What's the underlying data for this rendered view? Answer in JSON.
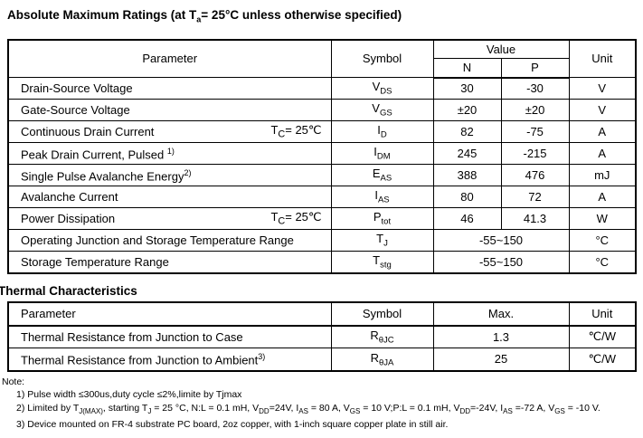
{
  "abs_max": {
    "title": [
      "Absolute Maximum Ratings (at T",
      [
        "sub",
        "a"
      ],
      "= 25°C unless otherwise specified)"
    ],
    "headers": {
      "parameter": "Parameter",
      "symbol": "Symbol",
      "value": "Value",
      "n": "N",
      "p": "P",
      "unit": "Unit"
    },
    "rows": [
      {
        "parameter": [
          "Drain-Source Voltage"
        ],
        "symbol": [
          "V",
          [
            "sub",
            "DS"
          ]
        ],
        "n": "30",
        "p": "-30",
        "unit": "V"
      },
      {
        "parameter": [
          "Gate-Source Voltage"
        ],
        "symbol": [
          "V",
          [
            "sub",
            "GS"
          ]
        ],
        "n": "±20",
        "p": "±20",
        "unit": "V"
      },
      {
        "parameter": [
          "Continuous Drain Current"
        ],
        "condition": [
          "T",
          [
            "sub",
            "C"
          ],
          "= 25℃"
        ],
        "symbol": [
          "I",
          [
            "sub",
            "D"
          ]
        ],
        "n": "82",
        "p": "-75",
        "unit": "A"
      },
      {
        "parameter": [
          "Peak Drain Current, Pulsed ",
          [
            "sup",
            "1)"
          ]
        ],
        "symbol": [
          "I",
          [
            "sub",
            "DM"
          ]
        ],
        "n": "245",
        "p": "-215",
        "unit": "A"
      },
      {
        "parameter": [
          "Single Pulse Avalanche Energy",
          [
            "sup",
            "2)"
          ]
        ],
        "symbol": [
          "E",
          [
            "sub",
            "AS"
          ]
        ],
        "n": "388",
        "p": "476",
        "unit": "mJ"
      },
      {
        "parameter": [
          "Avalanche Current"
        ],
        "symbol": [
          "I",
          [
            "sub",
            "AS"
          ]
        ],
        "n": "80",
        "p": "72",
        "unit": "A"
      },
      {
        "parameter": [
          "Power Dissipation"
        ],
        "condition": [
          "T",
          [
            "sub",
            "C"
          ],
          "= 25℃"
        ],
        "symbol": [
          "P",
          [
            "sub",
            "tot"
          ]
        ],
        "n": "46",
        "p": "41.3",
        "unit": "W"
      },
      {
        "parameter": [
          "Operating Junction and Storage Temperature Range"
        ],
        "symbol": [
          "T",
          [
            "sub",
            "J"
          ]
        ],
        "span": "-55~150",
        "unit": "°C"
      },
      {
        "parameter": [
          "Storage Temperature Range"
        ],
        "symbol": [
          "T",
          [
            "sub",
            "stg"
          ]
        ],
        "span": "-55~150",
        "unit": "°C"
      }
    ]
  },
  "thermal": {
    "title": [
      "Thermal Characteristics"
    ],
    "headers": {
      "parameter": "Parameter",
      "symbol": "Symbol",
      "max": "Max.",
      "unit": "Unit"
    },
    "rows": [
      {
        "parameter": [
          "Thermal Resistance from Junction to Case"
        ],
        "symbol": [
          "R",
          [
            "sub",
            "θJC"
          ]
        ],
        "max": "1.3",
        "unit": "℃/W"
      },
      {
        "parameter": [
          "Thermal Resistance from Junction to Ambient",
          [
            "sup",
            "3)"
          ]
        ],
        "symbol": [
          "R",
          [
            "sub",
            "θJA"
          ]
        ],
        "max": "25",
        "unit": "℃/W"
      }
    ]
  },
  "notes": {
    "label": "Note:",
    "items": [
      [
        "1) Pulse width ≤300us,duty cycle ≤2%,limite by Tjmax"
      ],
      [
        "2)  Limited by T",
        [
          "sub",
          "J(MAX)"
        ],
        ", starting T",
        [
          "sub",
          "J"
        ],
        " = 25 °C, N:L = 0.1 mH, V",
        [
          "sub",
          "DD"
        ],
        "=24V, I",
        [
          "sub",
          "AS"
        ],
        " = 80 A, V",
        [
          "sub",
          "GS"
        ],
        " = 10 V;P:L = 0.1 mH, V",
        [
          "sub",
          "DD"
        ],
        "=-24V, I",
        [
          "sub",
          "AS"
        ],
        " =-72 A, V",
        [
          "sub",
          "GS"
        ],
        " = -10 V."
      ],
      [
        "3)  Device mounted on FR-4 substrate PC board, 2oz copper, with 1-inch square copper plate in still air."
      ]
    ]
  }
}
